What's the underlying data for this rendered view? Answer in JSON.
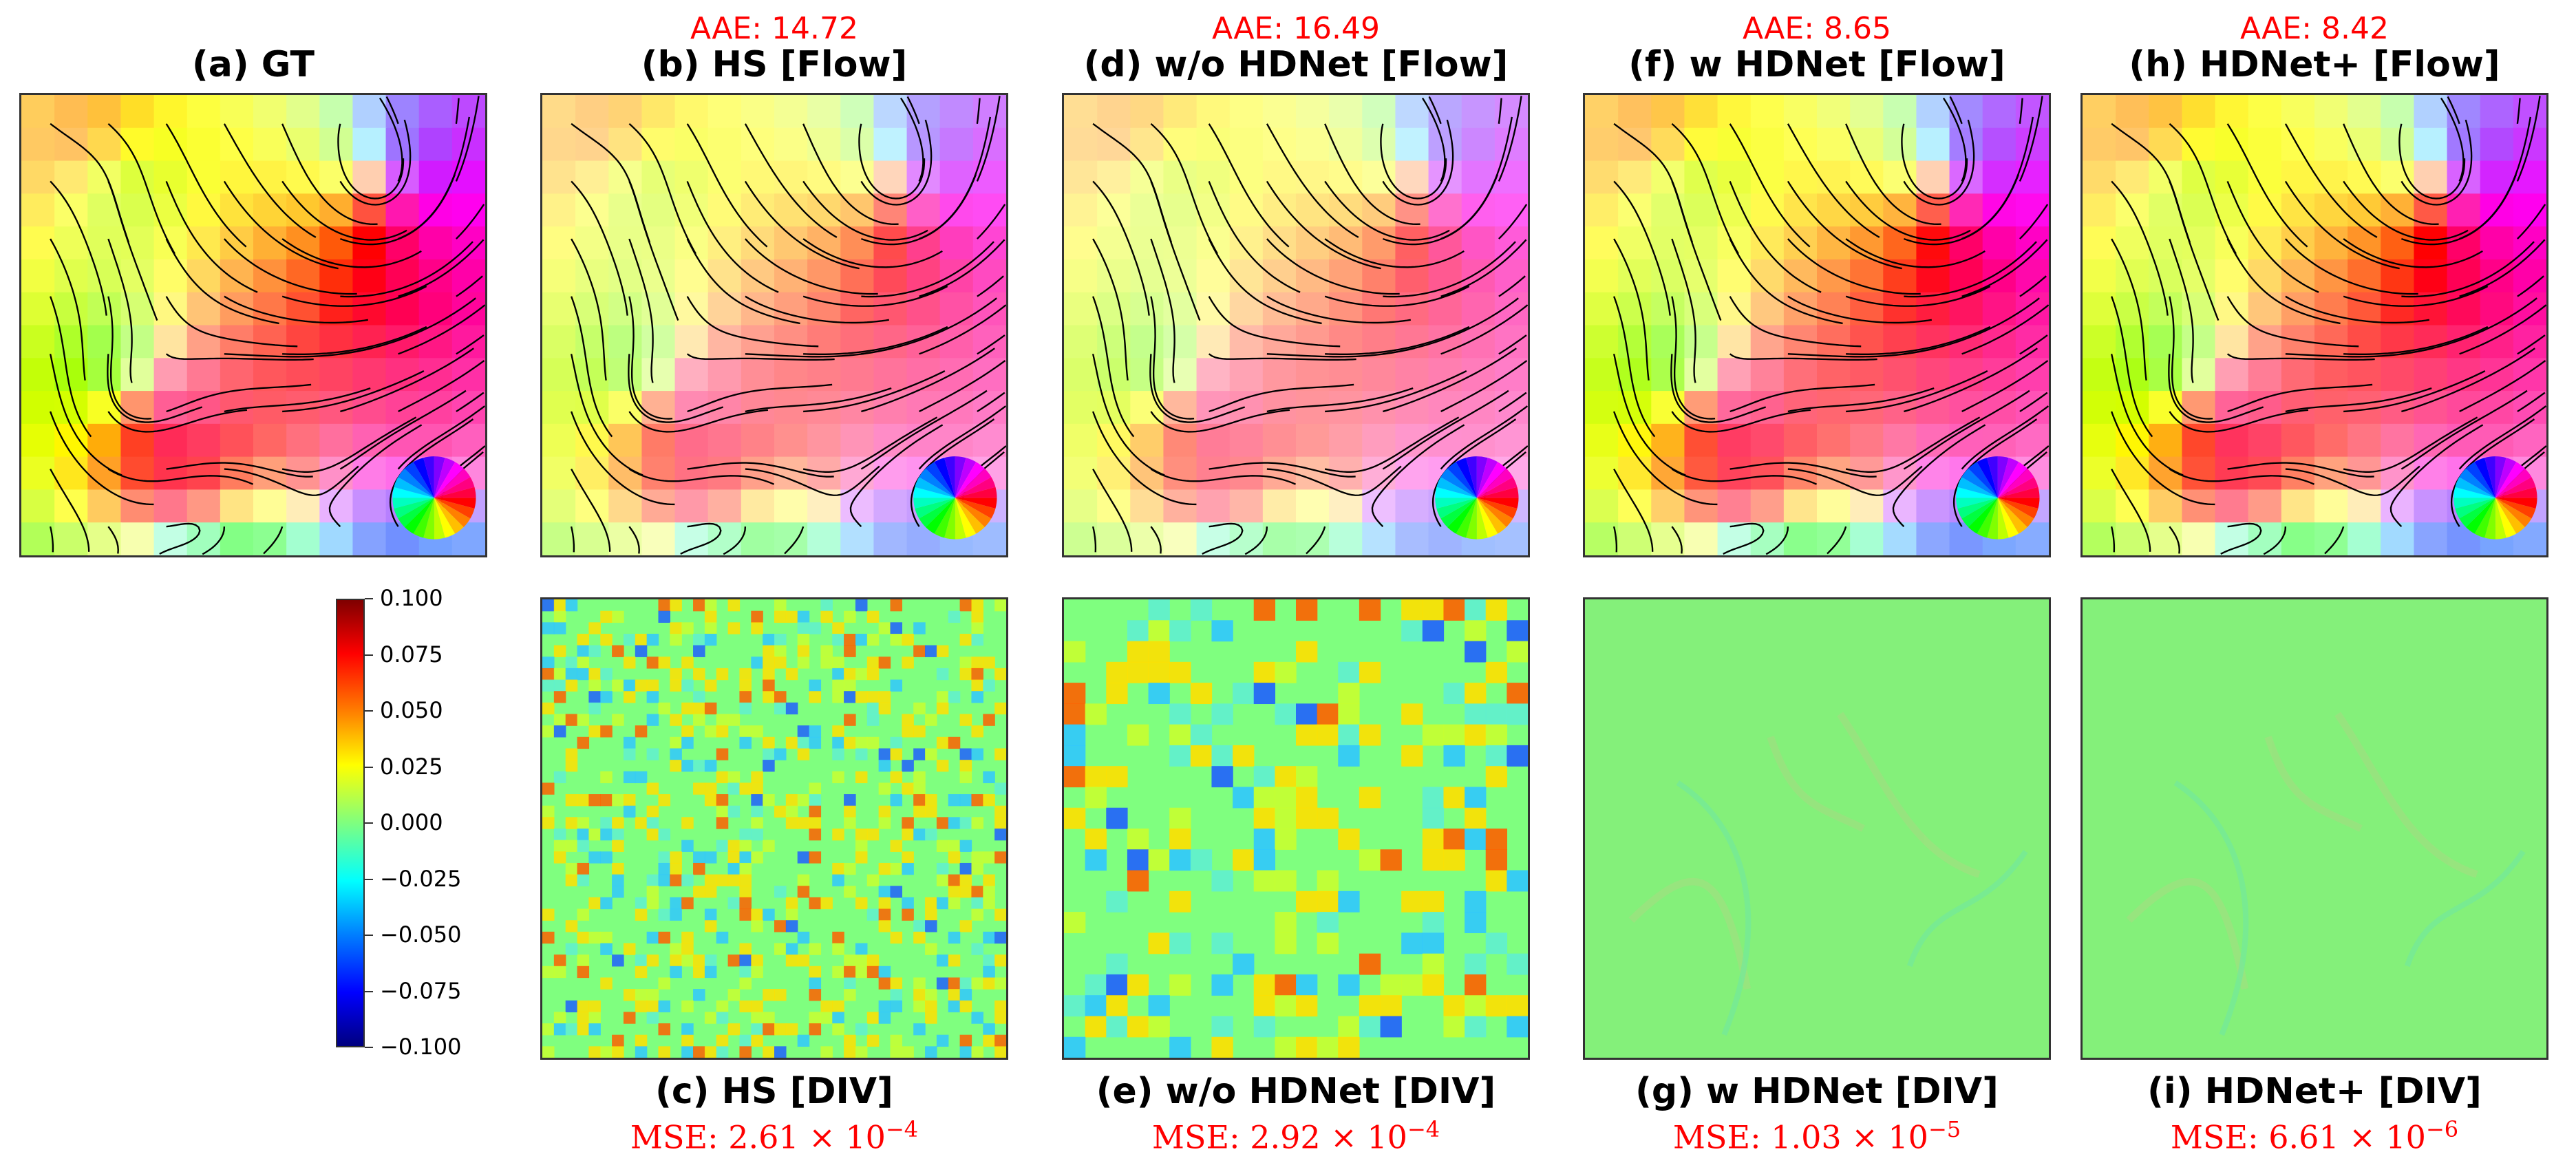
{
  "flow_panels": [
    {
      "id": "a",
      "title": "(a) GT",
      "metric": "",
      "sharpness": 1.0
    },
    {
      "id": "b",
      "title": "(b) HS [Flow]",
      "metric": "AAE: 14.72",
      "sharpness": 0.6
    },
    {
      "id": "d",
      "title": "(d) w/o HDNet [Flow]",
      "metric": "AAE: 16.49",
      "sharpness": 0.5
    },
    {
      "id": "f",
      "title": "(f) w HDNet [Flow]",
      "metric": "AAE: 8.65",
      "sharpness": 0.9
    },
    {
      "id": "h",
      "title": "(h) HDNet+ [Flow]",
      "metric": "AAE: 8.42",
      "sharpness": 0.95
    }
  ],
  "div_panels": [
    {
      "id": "c",
      "title": "(c) HS [DIV]",
      "mse_mantissa": "MSE: 2.61 × 10",
      "mse_exponent": "−4",
      "noise": "fine"
    },
    {
      "id": "e",
      "title": "(e) w/o HDNet [DIV]",
      "mse_mantissa": "MSE: 2.92 × 10",
      "mse_exponent": "−4",
      "noise": "blobs"
    },
    {
      "id": "g",
      "title": "(g) w HDNet [DIV]",
      "mse_mantissa": "MSE: 1.03 × 10",
      "mse_exponent": "−5",
      "noise": "smooth"
    },
    {
      "id": "i",
      "title": "(i) HDNet+ [DIV]",
      "mse_mantissa": "MSE: 6.61 × 10",
      "mse_exponent": "−6",
      "noise": "smooth"
    }
  ],
  "colorbar": {
    "ticks": [
      "0.100",
      "0.075",
      "0.050",
      "0.025",
      "0.000",
      "−0.025",
      "−0.050",
      "−0.075",
      "−0.100"
    ],
    "colormap": "jet"
  },
  "colors": {
    "metric": "#ff0000",
    "title": "#000000",
    "frame": "#333333"
  }
}
